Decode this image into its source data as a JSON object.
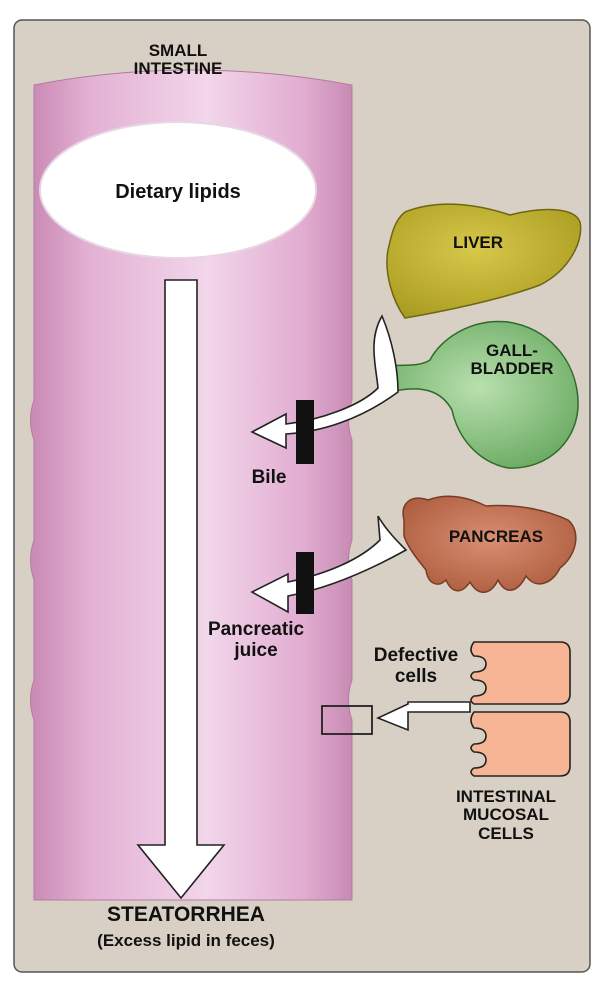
{
  "colors": {
    "panel_bg": "#d8d0c4",
    "intestine": "#e0a8cf",
    "liver": "#c9b934",
    "gallbladder": "#8fc485",
    "pancreas": "#c26e50",
    "mucosal_cells": "#f8b596"
  },
  "labels": {
    "small_intestine": [
      "SMALL",
      "INTESTINE"
    ],
    "dietary_lipids": "Dietary lipids",
    "liver": "LIVER",
    "gallbladder": [
      "GALL-",
      "BLADDER"
    ],
    "bile": "Bile",
    "pancreas": "PANCREAS",
    "pancreatic_juice": [
      "Pancreatic",
      "juice"
    ],
    "defective_cells": [
      "Defective",
      "cells"
    ],
    "mucosal_cells": [
      "INTESTINAL",
      "MUCOSAL",
      "CELLS"
    ],
    "steatorrhea": "STEATORRHEA",
    "steatorrhea_note": "(Excess lipid in feces)"
  },
  "icons": [
    "liver-icon",
    "gallbladder-icon",
    "pancreas-icon",
    "mucosal-cells-icon",
    "blocked-flow-icon"
  ]
}
